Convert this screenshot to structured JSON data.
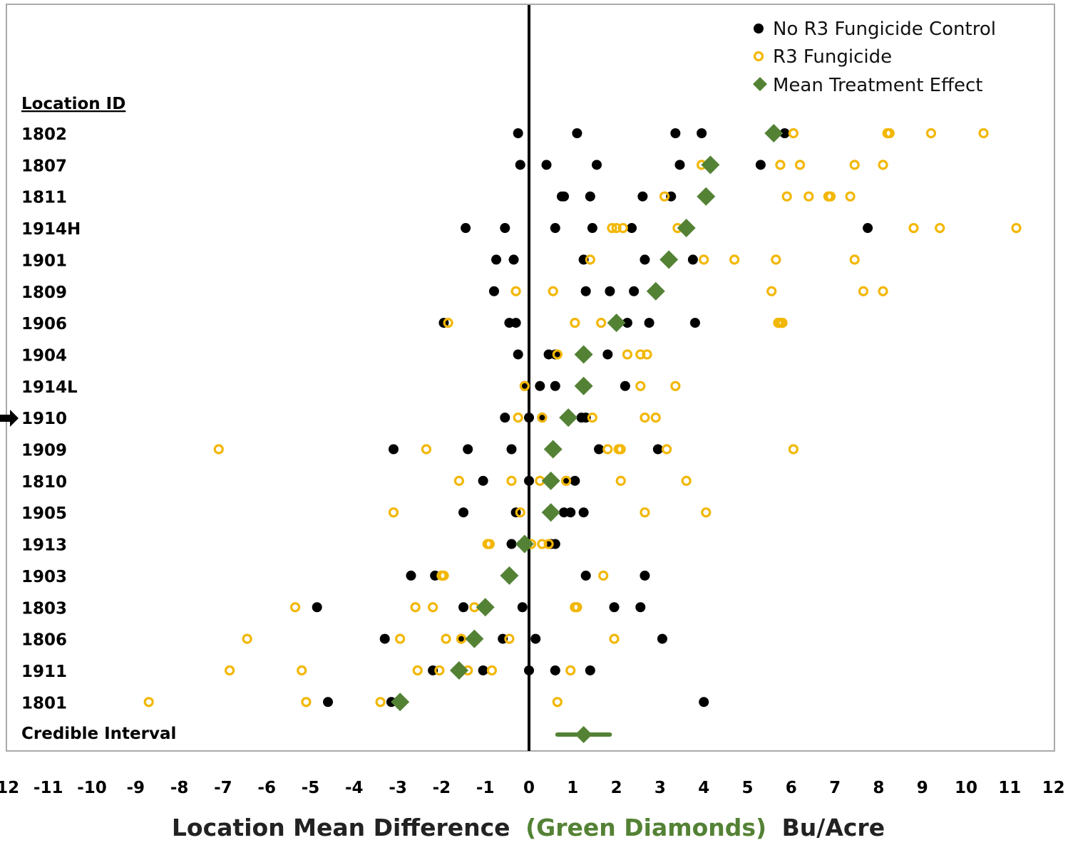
{
  "chart_data": {
    "type": "scatter",
    "title": "",
    "xlabel": {
      "part1": "Location Mean Difference",
      "part2": "(Green Diamonds)",
      "part3": "Bu/Acre"
    },
    "xlim": [
      -12,
      12
    ],
    "xticks": [
      "-12",
      "-11",
      "-10",
      "-9",
      "-8",
      "-7",
      "-6",
      "-5",
      "-4",
      "-3",
      "-2",
      "-1",
      "0",
      "1",
      "2",
      "3",
      "4",
      "5",
      "6",
      "7",
      "8",
      "9",
      "10",
      "11",
      "12"
    ],
    "y_header": "Location ID",
    "locations": [
      "1802",
      "1807",
      "1811",
      "1914H",
      "1901",
      "1809",
      "1906",
      "1904",
      "1914L",
      "1910",
      "1909",
      "1810",
      "1905",
      "1913",
      "1903",
      "1803",
      "1806",
      "1911",
      "1801"
    ],
    "highlighted_location": "1910",
    "credible_interval_label": "Credible Interval",
    "credible_interval": {
      "mean": 1.25,
      "low": 0.65,
      "high": 1.85
    },
    "legend_position": "top-right",
    "colors": {
      "control": "#000000",
      "fungicide": "#f2b705",
      "mean": "#548235",
      "xlabel_highlight": "#548235",
      "zero_line": "#000000",
      "frame": "#aaaaaa"
    },
    "series": [
      {
        "name": "No R3 Fungicide Control",
        "marker": "filled-circle",
        "points": {
          "1802": [
            -0.25,
            1.1,
            3.35,
            3.95,
            5.85
          ],
          "1807": [
            -0.2,
            0.4,
            1.55,
            3.45,
            5.3
          ],
          "1811": [
            0.75,
            0.8,
            1.4,
            2.6,
            3.25
          ],
          "1914H": [
            -1.45,
            -0.55,
            0.6,
            1.45,
            2.35,
            7.75
          ],
          "1901": [
            -0.75,
            -0.35,
            1.25,
            2.65,
            3.75
          ],
          "1809": [
            -0.8,
            1.3,
            1.85,
            2.4
          ],
          "1906": [
            -1.95,
            -0.45,
            -0.3,
            2.25,
            2.75,
            3.8
          ],
          "1904": [
            -0.25,
            0.45,
            0.6,
            1.8
          ],
          "1914L": [
            -0.1,
            0.25,
            0.6,
            2.2
          ],
          "1910": [
            -0.55,
            0.0,
            0.3,
            1.2,
            1.3
          ],
          "1909": [
            -3.1,
            -1.4,
            -0.4,
            1.6,
            2.95
          ],
          "1810": [
            -1.05,
            0.0,
            0.85,
            1.05
          ],
          "1905": [
            -1.5,
            -0.3,
            0.8,
            0.95,
            1.25
          ],
          "1913": [
            -0.4,
            0.5,
            0.6
          ],
          "1903": [
            -2.7,
            -2.15,
            1.3,
            2.65
          ],
          "1803": [
            -4.85,
            -1.5,
            -0.15,
            1.95,
            2.55
          ],
          "1806": [
            -3.3,
            -1.55,
            -0.6,
            0.15,
            3.05
          ],
          "1911": [
            -2.2,
            -1.05,
            0.0,
            0.6,
            1.4
          ],
          "1801": [
            -4.6,
            -3.15,
            4.0
          ]
        }
      },
      {
        "name": "R3 Fungicide",
        "marker": "open-circle",
        "points": {
          "1802": [
            6.05,
            8.2,
            8.25,
            9.2,
            10.4
          ],
          "1807": [
            3.95,
            5.75,
            6.2,
            7.45,
            8.1
          ],
          "1811": [
            3.1,
            5.9,
            6.4,
            6.85,
            6.9,
            7.35
          ],
          "1914H": [
            1.9,
            2.0,
            2.15,
            3.4,
            8.8,
            9.4,
            11.15
          ],
          "1901": [
            1.4,
            4.0,
            4.7,
            5.65,
            7.45
          ],
          "1809": [
            -0.3,
            0.55,
            5.55,
            7.65,
            8.1
          ],
          "1906": [
            -1.85,
            1.05,
            1.65,
            5.7,
            5.75,
            5.8
          ],
          "1904": [
            0.65,
            2.25,
            2.55,
            2.7
          ],
          "1914L": [
            -0.1,
            2.55,
            3.35
          ],
          "1910": [
            -0.25,
            0.3,
            1.45,
            2.65,
            2.9
          ],
          "1909": [
            -7.1,
            -2.35,
            1.8,
            2.05,
            2.1,
            3.15,
            6.05
          ],
          "1810": [
            -1.6,
            -0.4,
            0.25,
            0.85,
            2.1,
            3.6
          ],
          "1905": [
            -3.1,
            -0.2,
            2.65,
            4.05
          ],
          "1913": [
            -0.95,
            -0.9,
            0.05,
            0.3,
            0.45
          ],
          "1903": [
            -2.0,
            -1.95,
            1.7
          ],
          "1803": [
            -5.35,
            -2.6,
            -2.2,
            -1.25,
            1.05,
            1.1
          ],
          "1806": [
            -6.45,
            -2.95,
            -1.9,
            -1.55,
            -0.45,
            1.95
          ],
          "1911": [
            -6.85,
            -5.2,
            -2.55,
            -2.05,
            -1.4,
            -0.85,
            0.95
          ],
          "1801": [
            -8.7,
            -5.1,
            -3.4,
            0.65
          ]
        }
      },
      {
        "name": "Mean Treatment Effect",
        "marker": "diamond",
        "points": {
          "1802": 5.6,
          "1807": 4.15,
          "1811": 4.05,
          "1914H": 3.6,
          "1901": 3.2,
          "1809": 2.9,
          "1906": 2.0,
          "1904": 1.25,
          "1914L": 1.25,
          "1910": 0.9,
          "1909": 0.55,
          "1810": 0.5,
          "1905": 0.5,
          "1913": -0.1,
          "1903": -0.45,
          "1803": -1.0,
          "1806": -1.25,
          "1911": -1.6,
          "1801": -2.95
        }
      }
    ]
  }
}
